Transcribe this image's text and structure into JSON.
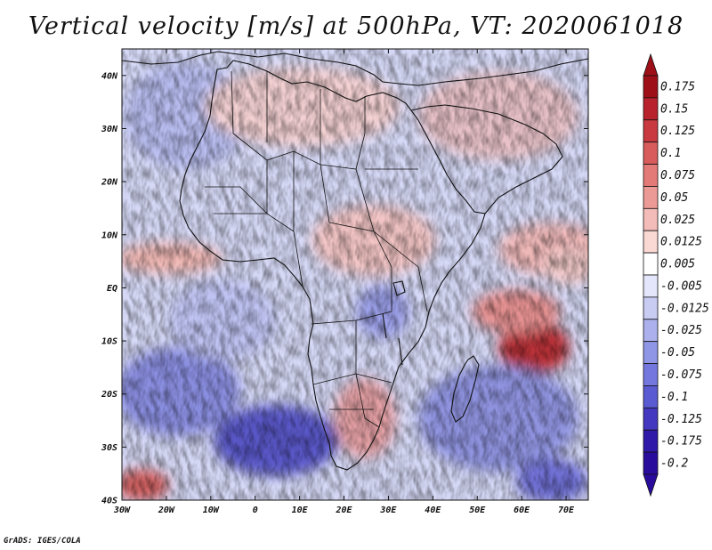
{
  "title": "Vertical velocity [m/s] at 500hPa, VT: 2020061018",
  "credit": "GrADS: IGES/COLA",
  "map": {
    "lat_ticks": [
      "40N",
      "30N",
      "20N",
      "10N",
      "EQ",
      "10S",
      "20S",
      "30S",
      "40S"
    ],
    "lon_ticks": [
      "30W",
      "20W",
      "10W",
      "0",
      "10E",
      "20E",
      "30E",
      "40E",
      "50E",
      "60E",
      "70E"
    ],
    "lon_range": [
      -30,
      75
    ],
    "lat_range": [
      -40,
      45
    ]
  },
  "colorbar": {
    "labels": [
      "0.175",
      "0.15",
      "0.125",
      "0.1",
      "0.075",
      "0.05",
      "0.025",
      "0.0125",
      "0.005",
      "-0.005",
      "-0.0125",
      "-0.025",
      "-0.05",
      "-0.075",
      "-0.1",
      "-0.125",
      "-0.175",
      "-0.2"
    ],
    "colors": [
      "#9e1018",
      "#b8222c",
      "#c83a40",
      "#d85c5c",
      "#e47a78",
      "#ec9a96",
      "#f4bcb8",
      "#fad8d4",
      "#ffffff",
      "#e4e6fb",
      "#c8ccf3",
      "#acb0ec",
      "#9096e6",
      "#7478de",
      "#5a5ad2",
      "#4438c0",
      "#3018a8",
      "#2a0c9c"
    ]
  }
}
